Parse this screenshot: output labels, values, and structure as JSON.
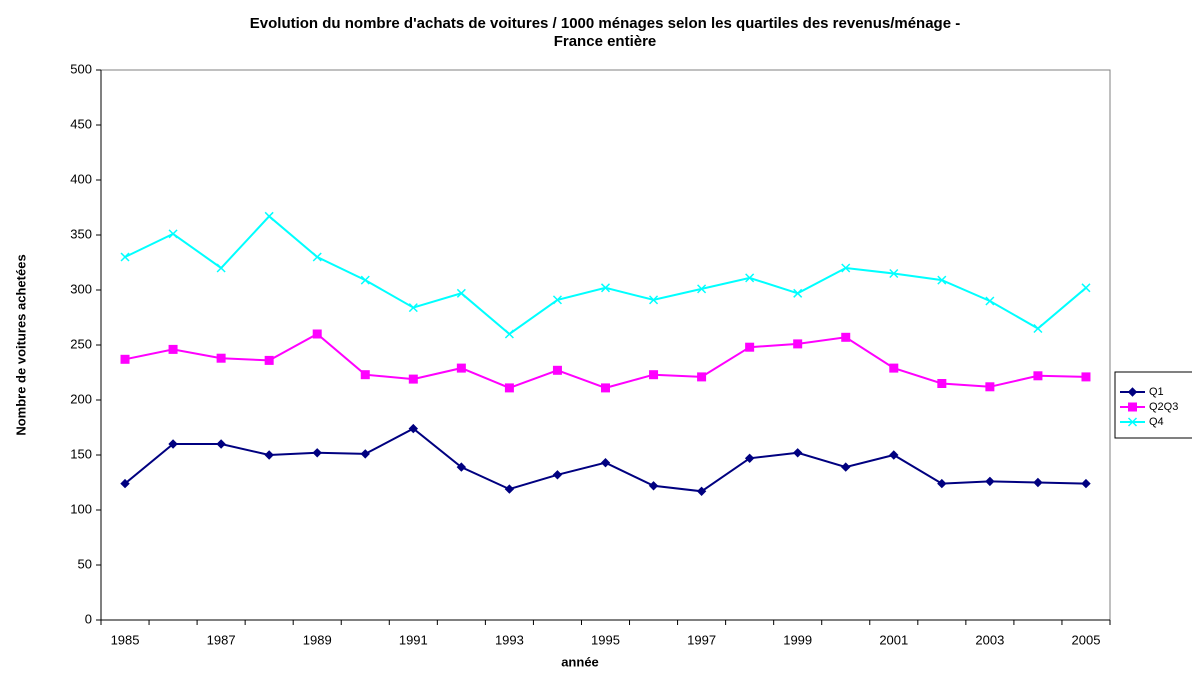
{
  "chart_data": {
    "type": "line",
    "title": [
      "Evolution du nombre d'achats de voitures / 1000 ménages selon les quartiles des revenus/ménage -",
      "France entière"
    ],
    "x_label": "année",
    "y_label": "Nombre de voitures achetées",
    "categories": [
      "1985",
      null,
      "1987",
      null,
      "1989",
      null,
      "1991",
      null,
      "1993",
      null,
      "1995",
      null,
      "1997",
      null,
      "1999",
      null,
      "2001",
      null,
      "2003",
      null,
      "2005"
    ],
    "series": [
      {
        "name": "Q1",
        "color": "#000080",
        "marker": "diamond",
        "values": [
          124,
          160,
          160,
          150,
          152,
          151,
          174,
          139,
          119,
          132,
          143,
          122,
          117,
          147,
          152,
          139,
          150,
          124,
          126,
          125,
          124
        ]
      },
      {
        "name": "Q2Q3",
        "color": "#ff00ff",
        "marker": "square",
        "values": [
          237,
          246,
          238,
          236,
          260,
          223,
          219,
          229,
          211,
          227,
          211,
          223,
          221,
          248,
          251,
          257,
          229,
          215,
          212,
          222,
          221
        ]
      },
      {
        "name": "Q4",
        "color": "#00ffff",
        "marker": "cross",
        "values": [
          330,
          351,
          320,
          367,
          330,
          309,
          284,
          297,
          260,
          291,
          302,
          291,
          301,
          311,
          297,
          320,
          315,
          309,
          290,
          265,
          302
        ]
      }
    ],
    "ylim": [
      0,
      500
    ],
    "yticks": [
      0,
      50,
      100,
      150,
      200,
      250,
      300,
      350,
      400,
      450,
      500
    ],
    "grid": false,
    "legend": "right"
  }
}
